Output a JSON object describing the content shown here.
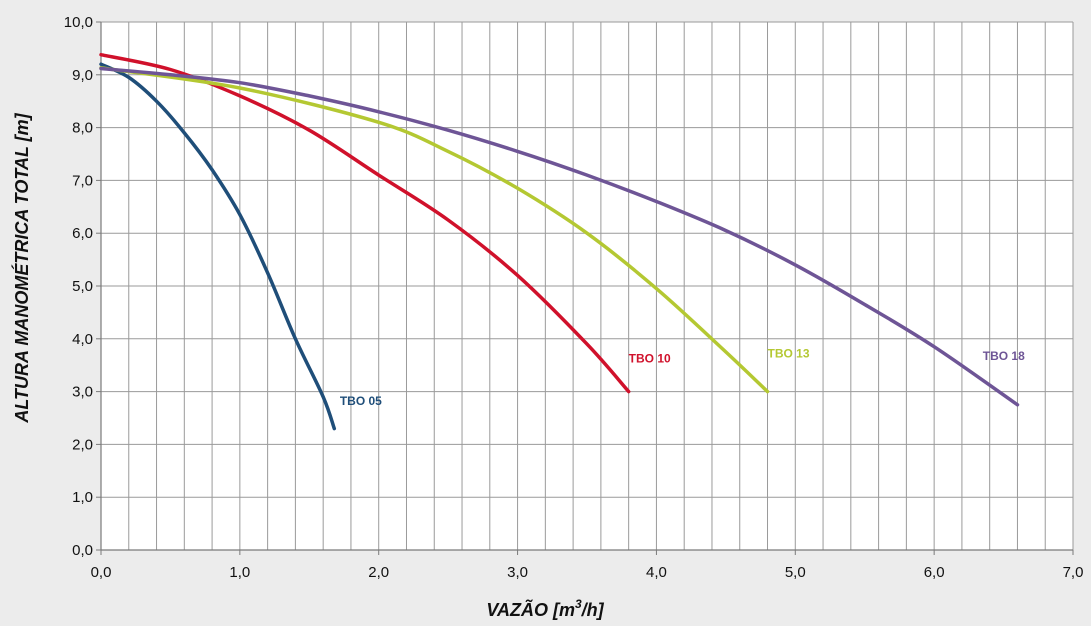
{
  "chart_data": {
    "type": "line",
    "xlabel": "VAZÃO [m³/h]",
    "xlabel_parts": {
      "main": "VAZÃO [m",
      "sup": "3",
      "end": "/h]"
    },
    "ylabel": "ALTURA MANOMÉTRICA TOTAL [m]",
    "xlim": [
      0,
      7
    ],
    "ylim": [
      0,
      10
    ],
    "x_ticks": [
      "0,0",
      "1,0",
      "2,0",
      "3,0",
      "4,0",
      "5,0",
      "6,0",
      "7,0"
    ],
    "y_ticks": [
      "0,0",
      "1,0",
      "2,0",
      "3,0",
      "4,0",
      "5,0",
      "6,0",
      "7,0",
      "8,0",
      "9,0",
      "10,0"
    ],
    "grid": true,
    "x_minor_step": 0.2,
    "legend": "inline labels at curve ends",
    "series": [
      {
        "name": "TBO 05",
        "color": "#1f4e79",
        "x": [
          0,
          0.2,
          0.4,
          0.6,
          0.8,
          1.0,
          1.2,
          1.4,
          1.6,
          1.68
        ],
        "y": [
          9.2,
          8.95,
          8.5,
          7.9,
          7.2,
          6.35,
          5.25,
          4.0,
          2.9,
          2.3
        ],
        "label_at": [
          1.72,
          2.75
        ]
      },
      {
        "name": "TBO 10",
        "color": "#d0112b",
        "x": [
          0,
          0.5,
          1.0,
          1.5,
          2.0,
          2.5,
          3.0,
          3.5,
          3.8
        ],
        "y": [
          9.38,
          9.1,
          8.6,
          7.95,
          7.1,
          6.25,
          5.2,
          3.9,
          3.0
        ],
        "label_at": [
          3.8,
          3.55
        ]
      },
      {
        "name": "TBO 13",
        "color": "#b4c832",
        "x": [
          0,
          1.0,
          2.0,
          2.5,
          3.0,
          3.5,
          4.0,
          4.5,
          4.8
        ],
        "y": [
          9.13,
          8.75,
          8.1,
          7.55,
          6.85,
          6.0,
          4.95,
          3.75,
          3.0
        ],
        "label_at": [
          4.8,
          3.65
        ]
      },
      {
        "name": "TBO 18",
        "color": "#6e5596",
        "x": [
          0,
          0.5,
          1.0,
          1.5,
          2.0,
          2.5,
          3.0,
          3.5,
          4.0,
          4.5,
          5.0,
          5.5,
          6.0,
          6.6
        ],
        "y": [
          9.12,
          9.0,
          8.85,
          8.6,
          8.3,
          7.95,
          7.55,
          7.1,
          6.6,
          6.05,
          5.4,
          4.65,
          3.85,
          2.75
        ],
        "label_at": [
          6.35,
          3.6
        ]
      }
    ]
  }
}
